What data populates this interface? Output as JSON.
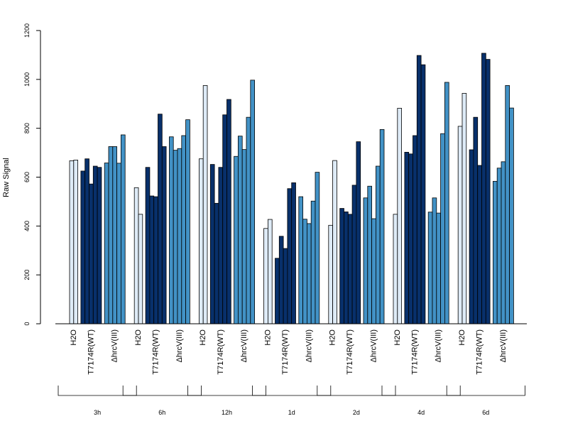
{
  "chart_data": {
    "type": "bar",
    "ylabel": "Raw Signal",
    "ylim": [
      0,
      1200
    ],
    "yticks": [
      0,
      200,
      400,
      600,
      800,
      1000,
      1200
    ],
    "grid": false,
    "conditions": [
      "H2O",
      "T7174R(WT)",
      "ΔhrcV(III)"
    ],
    "colors": {
      "H2O": "#deebf7",
      "T7174R(WT)": "#08306b",
      "ΔhrcV(III)": "#4292c6"
    },
    "groups": [
      {
        "label": "3h",
        "H2O": [
          667,
          670
        ],
        "T7174R(WT)": [
          625,
          675,
          572,
          645,
          640
        ],
        "ΔhrcV(III)": [
          658,
          725,
          725,
          657,
          773
        ]
      },
      {
        "label": "6h",
        "H2O": [
          557,
          448
        ],
        "T7174R(WT)": [
          640,
          523,
          520,
          858,
          725
        ],
        "ΔhrcV(III)": [
          765,
          710,
          717,
          770,
          835
        ]
      },
      {
        "label": "12h",
        "H2O": [
          675,
          975
        ],
        "T7174R(WT)": [
          652,
          493,
          640,
          855,
          918
        ],
        "ΔhrcV(III)": [
          685,
          768,
          713,
          845,
          997
        ]
      },
      {
        "label": "1d",
        "H2O": [
          390,
          427
        ],
        "T7174R(WT)": [
          268,
          358,
          308,
          553,
          577
        ],
        "ΔhrcV(III)": [
          520,
          428,
          410,
          502,
          620
        ]
      },
      {
        "label": "2d",
        "H2O": [
          403,
          668
        ],
        "T7174R(WT)": [
          472,
          458,
          448,
          567,
          745
        ],
        "ΔhrcV(III)": [
          515,
          563,
          430,
          645,
          795
        ]
      },
      {
        "label": "4d",
        "H2O": [
          448,
          882
        ],
        "T7174R(WT)": [
          702,
          695,
          770,
          1098,
          1060
        ],
        "ΔhrcV(III)": [
          457,
          515,
          453,
          778,
          988
        ]
      },
      {
        "label": "6d",
        "H2O": [
          808,
          943
        ],
        "T7174R(WT)": [
          712,
          845,
          648,
          1107,
          1082
        ],
        "ΔhrcV(III)": [
          583,
          637,
          663,
          975,
          883
        ]
      }
    ]
  }
}
